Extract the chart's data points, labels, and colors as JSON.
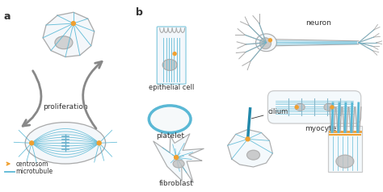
{
  "bg_color": "#ffffff",
  "cell_outline_color": "#aaaaaa",
  "microtubule_color": "#5ab8d5",
  "centrosome_color": "#f0a030",
  "arrow_color": "#888888",
  "label_color": "#333333",
  "labels": {
    "proliferation": "proliferation",
    "epithelial": "epithelial cell",
    "neuron": "neuron",
    "platelet": "platelet",
    "myocyte": "myocyte",
    "fibroblast": "fibroblast",
    "cilium": "cilium",
    "centrosom": "centrosom",
    "microtubule": "microtubule"
  },
  "figsize": [
    4.74,
    2.38
  ],
  "dpi": 100
}
